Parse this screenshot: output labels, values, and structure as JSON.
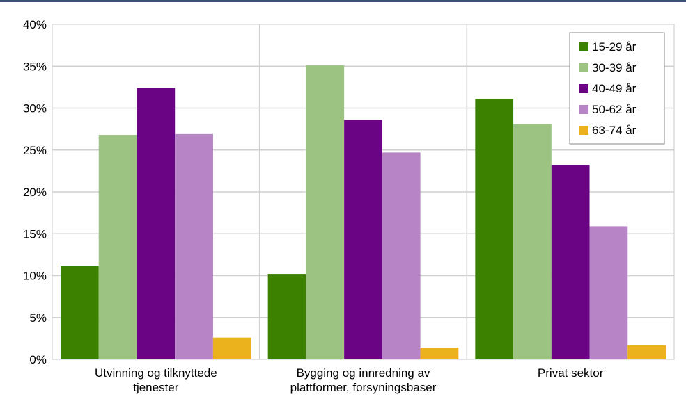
{
  "chart_data": {
    "type": "bar",
    "categories": [
      [
        "Utvinning og tilknyttede",
        "tjenester"
      ],
      [
        "Bygging og innredning av",
        "plattformer, forsyningsbaser"
      ],
      [
        "Privat sektor"
      ]
    ],
    "series": [
      {
        "name": "15-29 år",
        "color": "#3c8200",
        "values": [
          11.2,
          10.2,
          31.1
        ]
      },
      {
        "name": "30-39 år",
        "color": "#9dc383",
        "values": [
          26.8,
          35.1,
          28.1
        ]
      },
      {
        "name": "40-49 år",
        "color": "#6a0484",
        "values": [
          32.4,
          28.6,
          23.2
        ]
      },
      {
        "name": "50-62 år",
        "color": "#b784c5",
        "values": [
          26.9,
          24.7,
          15.9
        ]
      },
      {
        "name": "63-74 år",
        "color": "#ebb21e",
        "values": [
          2.6,
          1.4,
          1.7
        ]
      }
    ],
    "ylim": [
      0,
      40
    ],
    "yticks": [
      "0%",
      "5%",
      "10%",
      "15%",
      "20%",
      "25%",
      "30%",
      "35%",
      "40%"
    ],
    "ytick_values": [
      0,
      5,
      10,
      15,
      20,
      25,
      30,
      35,
      40
    ],
    "grid": "on",
    "legend": "top-right",
    "title": "",
    "xlabel": "",
    "ylabel": ""
  }
}
